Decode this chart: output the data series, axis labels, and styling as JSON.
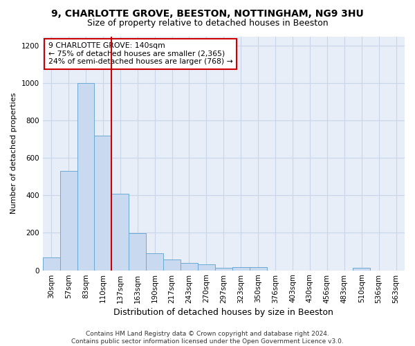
{
  "title1": "9, CHARLOTTE GROVE, BEESTON, NOTTINGHAM, NG9 3HU",
  "title2": "Size of property relative to detached houses in Beeston",
  "xlabel": "Distribution of detached houses by size in Beeston",
  "ylabel": "Number of detached properties",
  "categories": [
    "30sqm",
    "57sqm",
    "83sqm",
    "110sqm",
    "137sqm",
    "163sqm",
    "190sqm",
    "217sqm",
    "243sqm",
    "270sqm",
    "297sqm",
    "323sqm",
    "350sqm",
    "376sqm",
    "403sqm",
    "430sqm",
    "456sqm",
    "483sqm",
    "510sqm",
    "536sqm",
    "563sqm"
  ],
  "values": [
    70,
    530,
    1000,
    720,
    410,
    197,
    90,
    57,
    40,
    33,
    15,
    18,
    18,
    0,
    0,
    0,
    0,
    0,
    15,
    0,
    0
  ],
  "bar_color": "#c8d9f0",
  "bar_edge_color": "#6aaad4",
  "grid_color": "#c8d4e8",
  "background_color": "#ffffff",
  "plot_bg_color": "#e8eef8",
  "vline_x": 3.5,
  "vline_color": "#cc0000",
  "annotation_text": "9 CHARLOTTE GROVE: 140sqm\n← 75% of detached houses are smaller (2,365)\n24% of semi-detached houses are larger (768) →",
  "annotation_box_facecolor": "#ffffff",
  "annotation_box_edgecolor": "#cc0000",
  "footer_text": "Contains HM Land Registry data © Crown copyright and database right 2024.\nContains public sector information licensed under the Open Government Licence v3.0.",
  "ylim": [
    0,
    1250
  ],
  "yticks": [
    0,
    200,
    400,
    600,
    800,
    1000,
    1200
  ],
  "title1_fontsize": 10,
  "title2_fontsize": 9,
  "xlabel_fontsize": 9,
  "ylabel_fontsize": 8,
  "tick_fontsize": 7.5,
  "footer_fontsize": 6.5
}
